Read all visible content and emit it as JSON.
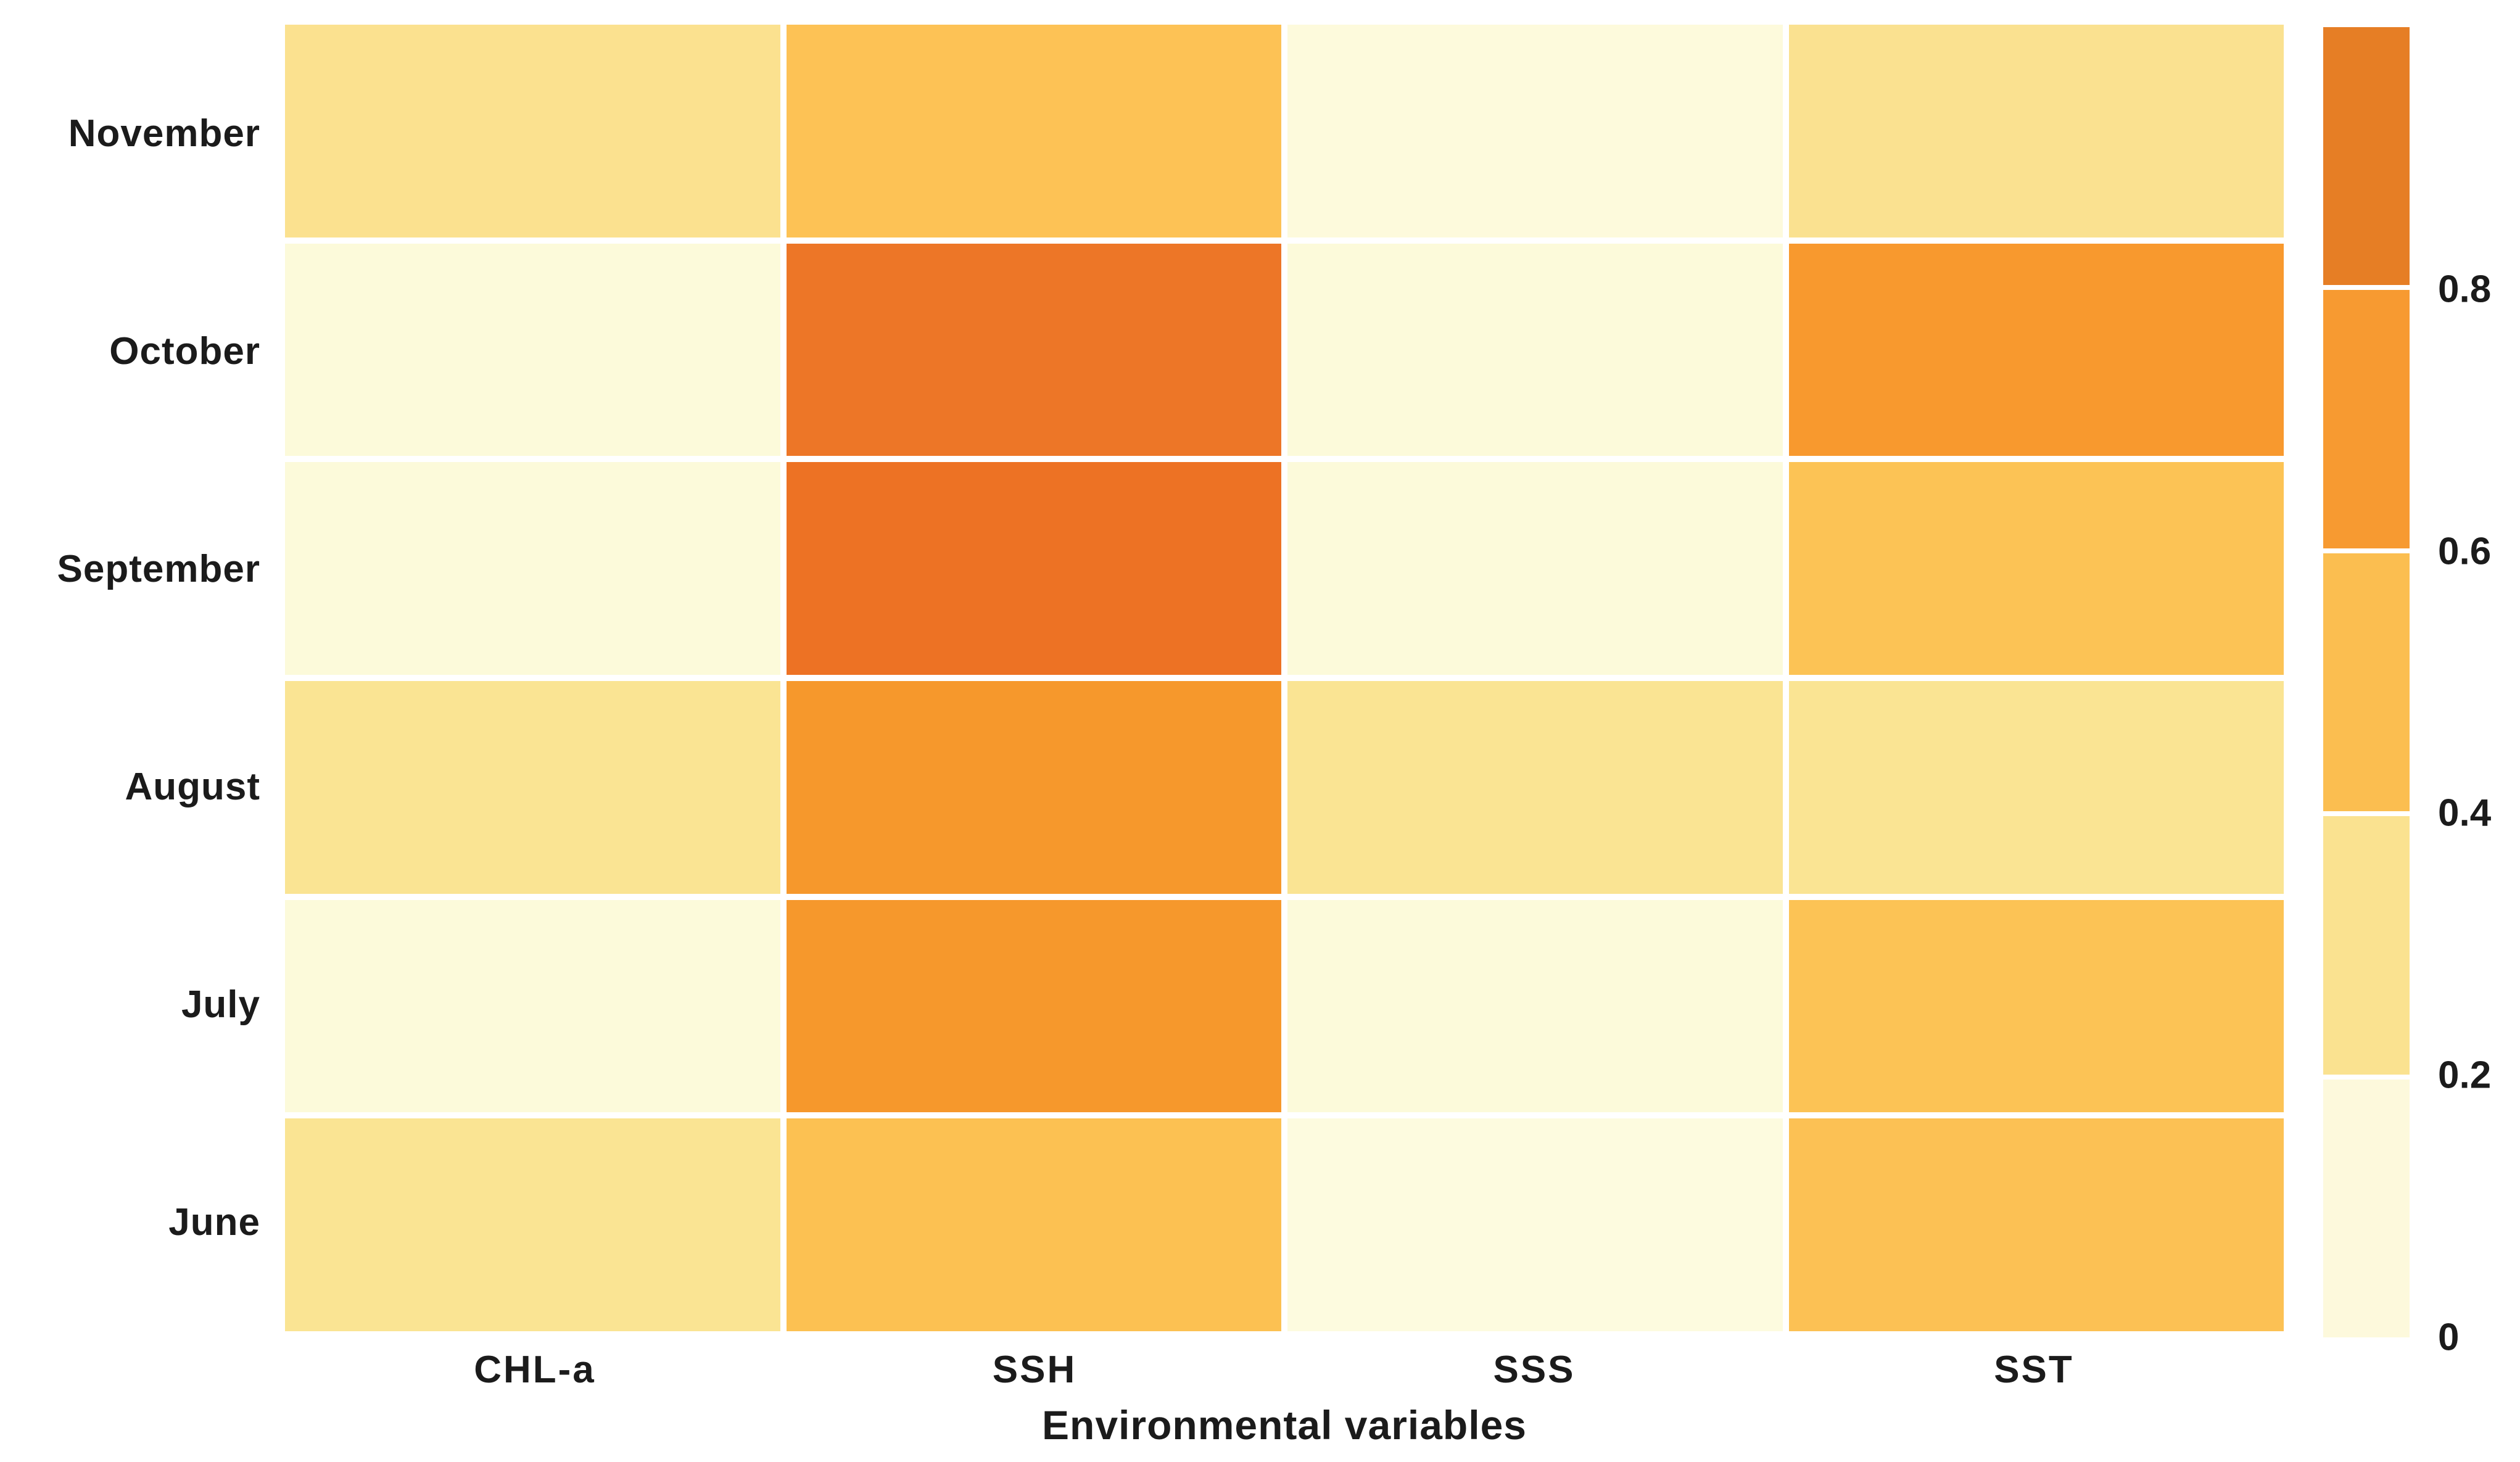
{
  "figure": {
    "background": "#ffffff",
    "text_color": "#1b1b1b"
  },
  "chart_data": {
    "type": "heatmap",
    "title": "",
    "xlabel": "Environmental variables",
    "ylabel": "",
    "rows": [
      "November",
      "October",
      "September",
      "August",
      "July",
      "June"
    ],
    "columns": [
      "CHL-a",
      "SSH",
      "SSS",
      "SST"
    ],
    "values": [
      [
        0.3,
        0.5,
        0.1,
        0.3
      ],
      [
        0.1,
        0.9,
        0.1,
        0.7
      ],
      [
        0.1,
        0.9,
        0.1,
        0.5
      ],
      [
        0.3,
        0.7,
        0.3,
        0.3
      ],
      [
        0.1,
        0.7,
        0.1,
        0.5
      ],
      [
        0.3,
        0.5,
        0.1,
        0.5
      ]
    ],
    "cell_colors": [
      [
        "#FBE18F",
        "#FDC255",
        "#FDFADC",
        "#FAE190"
      ],
      [
        "#FCFADA",
        "#ED7627",
        "#FCFADA",
        "#F8992E"
      ],
      [
        "#FCFADA",
        "#ED7224",
        "#FCFADA",
        "#FCC355"
      ],
      [
        "#FAE493",
        "#F6982C",
        "#FAE493",
        "#FAE493"
      ],
      [
        "#FCFADA",
        "#F6982C",
        "#FCFADA",
        "#FCC355"
      ],
      [
        "#FAE493",
        "#FCC152",
        "#FDFBDF",
        "#FCC154"
      ]
    ],
    "grid_gap_color": "#ffffff",
    "legend_position": "right",
    "colorbar": {
      "range": [
        0,
        1
      ],
      "segment_colors_top_to_bottom": [
        "#E67E25",
        "#F79A31",
        "#FBBE50",
        "#FAE290",
        "#FDF9DC"
      ],
      "tick_labels": [
        "0.8",
        "0.6",
        "0.4",
        "0.2",
        "0"
      ],
      "tick_values": [
        0.8,
        0.6,
        0.4,
        0.2,
        0
      ]
    }
  }
}
